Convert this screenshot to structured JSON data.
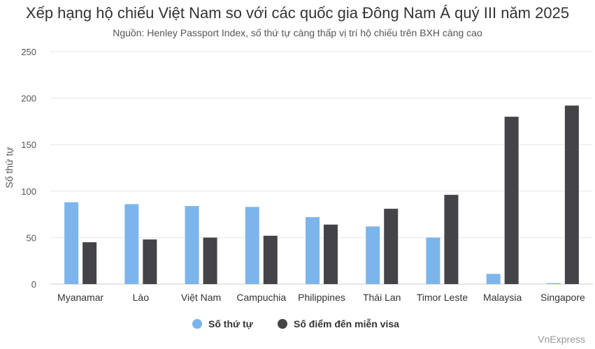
{
  "title": "Xếp hạng hộ chiếu Việt Nam so với các quốc gia Đông Nam Á quý III năm 2025",
  "subtitle": "Nguồn: Henley Passport Index, số thứ tự càng thấp vị trí hộ chiếu trên BXH càng cao",
  "credit": "VnExpress",
  "chart_data": {
    "type": "bar",
    "title": "Xếp hạng hộ chiếu Việt Nam so với các quốc gia Đông Nam Á quý III năm 2025",
    "subtitle": "Nguồn: Henley Passport Index, số thứ tự càng thấp vị trí hộ chiếu trên BXH càng cao",
    "xlabel": "",
    "ylabel": "Số thứ tự",
    "ylim": [
      0,
      250
    ],
    "yticks": [
      0,
      50,
      100,
      150,
      200,
      250
    ],
    "grid": true,
    "legend_position": "bottom-center",
    "categories": [
      "Myanamar",
      "Lào",
      "Việt Nam",
      "Campuchia",
      "Philippines",
      "Thái Lan",
      "Timor Leste",
      "Malaysia",
      "Singapore"
    ],
    "series": [
      {
        "name": "Số thứ tự",
        "color": "#7cb5ec",
        "values": [
          88,
          86,
          84,
          83,
          72,
          62,
          50,
          11,
          1
        ]
      },
      {
        "name": "Số điểm đến miễn visa",
        "color": "#434348",
        "values": [
          45,
          48,
          50,
          52,
          64,
          81,
          96,
          180,
          192
        ]
      }
    ]
  }
}
